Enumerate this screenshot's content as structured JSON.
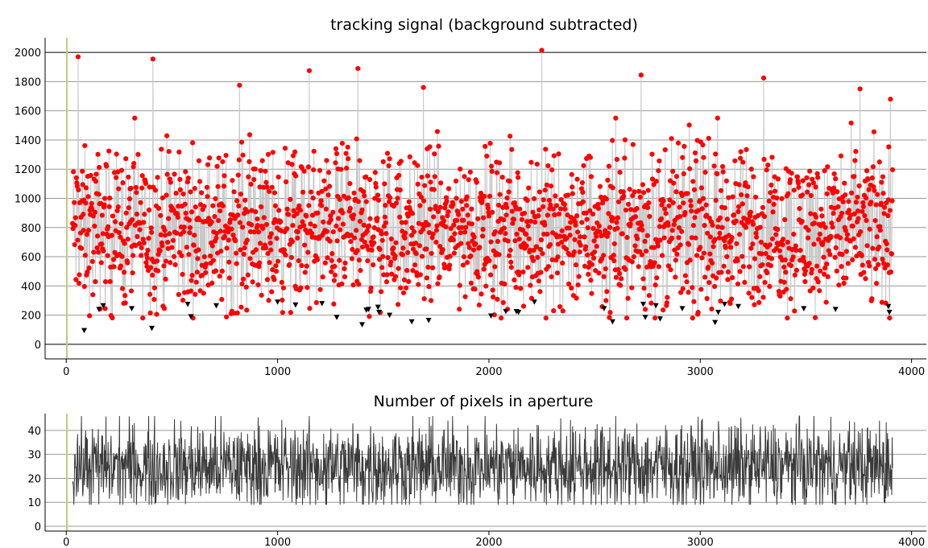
{
  "chart_data": [
    {
      "type": "scatter",
      "title": "tracking signal (background subtracted)",
      "xlabel": "",
      "ylabel": "",
      "xlim": [
        -100,
        4070
      ],
      "ylim": [
        -100,
        2100
      ],
      "xticks": [
        "0",
        "1000",
        "2000",
        "3000",
        "4000"
      ],
      "yticks": [
        "0",
        "200",
        "400",
        "600",
        "800",
        "1000",
        "1200",
        "1400",
        "1600",
        "1800",
        "2000"
      ],
      "grid": "horizontal",
      "marker_line_x": 0,
      "series": [
        {
          "style": "red filled circles joined by a light gray line",
          "x_start": 30,
          "x_end": 3910,
          "count": 1941,
          "typical_range": [
            250,
            1350
          ],
          "values_sample": [
            {
              "x": 55,
              "y": 1970
            },
            {
              "x": 410,
              "y": 1955
            },
            {
              "x": 2250,
              "y": 2015
            },
            {
              "x": 2720,
              "y": 1845
            },
            {
              "x": 3300,
              "y": 1825
            },
            {
              "x": 1380,
              "y": 1890
            },
            {
              "x": 1150,
              "y": 1875
            },
            {
              "x": 1690,
              "y": 1760
            },
            {
              "x": 820,
              "y": 1775
            },
            {
              "x": 3755,
              "y": 1750
            },
            {
              "x": 3900,
              "y": 1680
            }
          ]
        },
        {
          "style": "black downward triangles (low outliers)",
          "points": [
            {
              "x": 85,
              "y": 95
            },
            {
              "x": 155,
              "y": 240
            },
            {
              "x": 175,
              "y": 265
            },
            {
              "x": 310,
              "y": 245
            },
            {
              "x": 405,
              "y": 110
            },
            {
              "x": 575,
              "y": 275
            },
            {
              "x": 590,
              "y": 190
            },
            {
              "x": 710,
              "y": 265
            },
            {
              "x": 1000,
              "y": 290
            },
            {
              "x": 1085,
              "y": 270
            },
            {
              "x": 1210,
              "y": 280
            },
            {
              "x": 1280,
              "y": 185
            },
            {
              "x": 1400,
              "y": 135
            },
            {
              "x": 1420,
              "y": 235
            },
            {
              "x": 1430,
              "y": 240
            },
            {
              "x": 1475,
              "y": 255
            },
            {
              "x": 1480,
              "y": 220
            },
            {
              "x": 1530,
              "y": 200
            },
            {
              "x": 1635,
              "y": 155
            },
            {
              "x": 1715,
              "y": 165
            },
            {
              "x": 2010,
              "y": 195
            },
            {
              "x": 2080,
              "y": 225
            },
            {
              "x": 2130,
              "y": 225
            },
            {
              "x": 2140,
              "y": 220
            },
            {
              "x": 2215,
              "y": 290
            },
            {
              "x": 2545,
              "y": 245
            },
            {
              "x": 2585,
              "y": 155
            },
            {
              "x": 2730,
              "y": 275
            },
            {
              "x": 2740,
              "y": 185
            },
            {
              "x": 2790,
              "y": 265
            },
            {
              "x": 2810,
              "y": 175
            },
            {
              "x": 2915,
              "y": 245
            },
            {
              "x": 3070,
              "y": 150
            },
            {
              "x": 3085,
              "y": 220
            },
            {
              "x": 3115,
              "y": 275
            },
            {
              "x": 3180,
              "y": 260
            },
            {
              "x": 3490,
              "y": 245
            },
            {
              "x": 3640,
              "y": 240
            },
            {
              "x": 3890,
              "y": 260
            },
            {
              "x": 3895,
              "y": 220
            }
          ]
        }
      ]
    },
    {
      "type": "line",
      "title": "Number of pixels in aperture",
      "xlabel": "",
      "ylabel": "",
      "xlim": [
        -100,
        4070
      ],
      "ylim": [
        -2,
        47
      ],
      "xticks": [
        "0",
        "1000",
        "2000",
        "3000",
        "4000"
      ],
      "yticks": [
        "0",
        "10",
        "20",
        "30",
        "40"
      ],
      "grid": "horizontal",
      "marker_line_x": 0,
      "series": [
        {
          "style": "dark gray line",
          "x_start": 30,
          "x_end": 3910,
          "count": 1941,
          "typical_range": [
            14,
            37
          ],
          "min": 9,
          "max": 46
        }
      ]
    }
  ]
}
